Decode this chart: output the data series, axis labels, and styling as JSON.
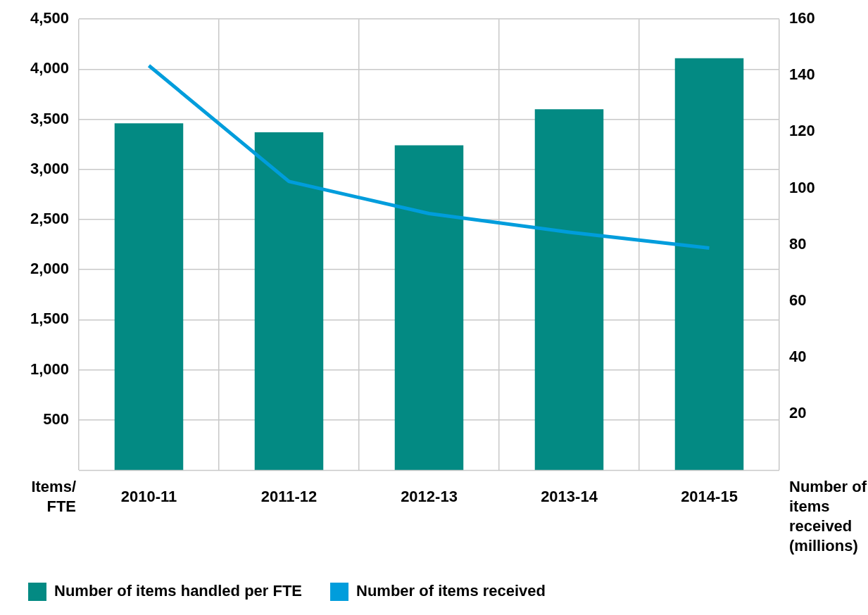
{
  "chart_data": {
    "type": "bar",
    "categories": [
      "2010-11",
      "2011-12",
      "2012-13",
      "2013-14",
      "2014-15"
    ],
    "series": [
      {
        "name": "Number of items handled per FTE",
        "type": "bar",
        "color": "#038a83",
        "values": [
          3460,
          3370,
          3240,
          3600,
          4110
        ]
      },
      {
        "name": "Number of items received",
        "type": "line",
        "axis": "y2",
        "color": "#009ddc",
        "values": [
          143.5,
          102.4,
          91,
          84.4,
          78.8
        ]
      }
    ],
    "ylabel": "Items/ FTE",
    "y2label": "Number of items received (millions)",
    "ylim": [
      0,
      4500
    ],
    "yticks": [
      500,
      {
        "value": 1000,
        "label": "1,000"
      },
      {
        "value": 1500,
        "label": "1,500"
      },
      {
        "value": 2000,
        "label": "2,000"
      },
      {
        "value": 2500,
        "label": "2,500"
      },
      {
        "value": 3000,
        "label": "3,000"
      },
      {
        "value": 3500,
        "label": "3,500"
      },
      {
        "value": 4000,
        "label": "4,000"
      },
      {
        "value": 4500,
        "label": "4,500"
      }
    ],
    "y2lim": [
      0,
      160
    ],
    "y2ticks": [
      20,
      40,
      60,
      80,
      100,
      120,
      140,
      160
    ],
    "grid": true,
    "legend": "bottom",
    "marker": "none",
    "line_style": "solid"
  }
}
